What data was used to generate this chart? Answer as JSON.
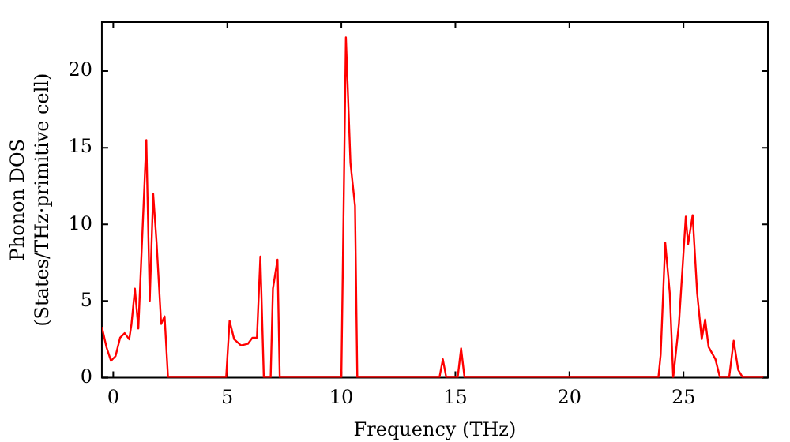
{
  "chart_data": {
    "type": "line",
    "xlabel": "Frequency (THz)",
    "ylabel": "Phonon DOS\n(States/THz·primitive cell)",
    "xlim": [
      -0.5,
      28.7
    ],
    "ylim": [
      0,
      23.2
    ],
    "xticks": [
      0,
      5,
      10,
      15,
      20,
      25
    ],
    "yticks": [
      0,
      5,
      10,
      15,
      20
    ],
    "grid": false,
    "legend": false,
    "marker": "none",
    "line_style": "solid",
    "series": [
      {
        "color": "#ff0000",
        "x": [
          -0.5,
          -0.3,
          -0.1,
          0.1,
          0.3,
          0.5,
          0.7,
          0.8,
          0.95,
          1.1,
          1.45,
          1.6,
          1.75,
          1.9,
          2.1,
          2.25,
          2.4,
          4.95,
          5.1,
          5.3,
          5.6,
          5.9,
          6.1,
          6.3,
          6.45,
          6.6,
          6.9,
          7.0,
          7.2,
          7.3,
          10.0,
          10.2,
          10.4,
          10.6,
          10.7,
          14.3,
          14.45,
          14.6,
          15.1,
          15.25,
          15.4,
          23.9,
          24.0,
          24.2,
          24.4,
          24.55,
          24.8,
          25.1,
          25.2,
          25.4,
          25.6,
          25.8,
          25.95,
          26.1,
          26.4,
          26.6,
          27.0,
          27.2,
          27.4,
          27.6,
          28.5
        ],
        "values": [
          3.3,
          2.0,
          1.1,
          1.4,
          2.6,
          2.9,
          2.5,
          3.5,
          5.8,
          3.2,
          15.5,
          5.0,
          12.0,
          8.8,
          3.5,
          4.0,
          0,
          0,
          3.7,
          2.5,
          2.1,
          2.2,
          2.6,
          2.6,
          7.9,
          0,
          0,
          5.8,
          7.7,
          0,
          0,
          22.2,
          14.0,
          11.2,
          0,
          0,
          1.2,
          0,
          0,
          1.9,
          0,
          0,
          1.5,
          8.8,
          5.5,
          0,
          3.5,
          10.5,
          8.7,
          10.6,
          5.5,
          2.5,
          3.8,
          2.0,
          1.2,
          0,
          0,
          2.4,
          0.5,
          0,
          0
        ]
      }
    ]
  }
}
